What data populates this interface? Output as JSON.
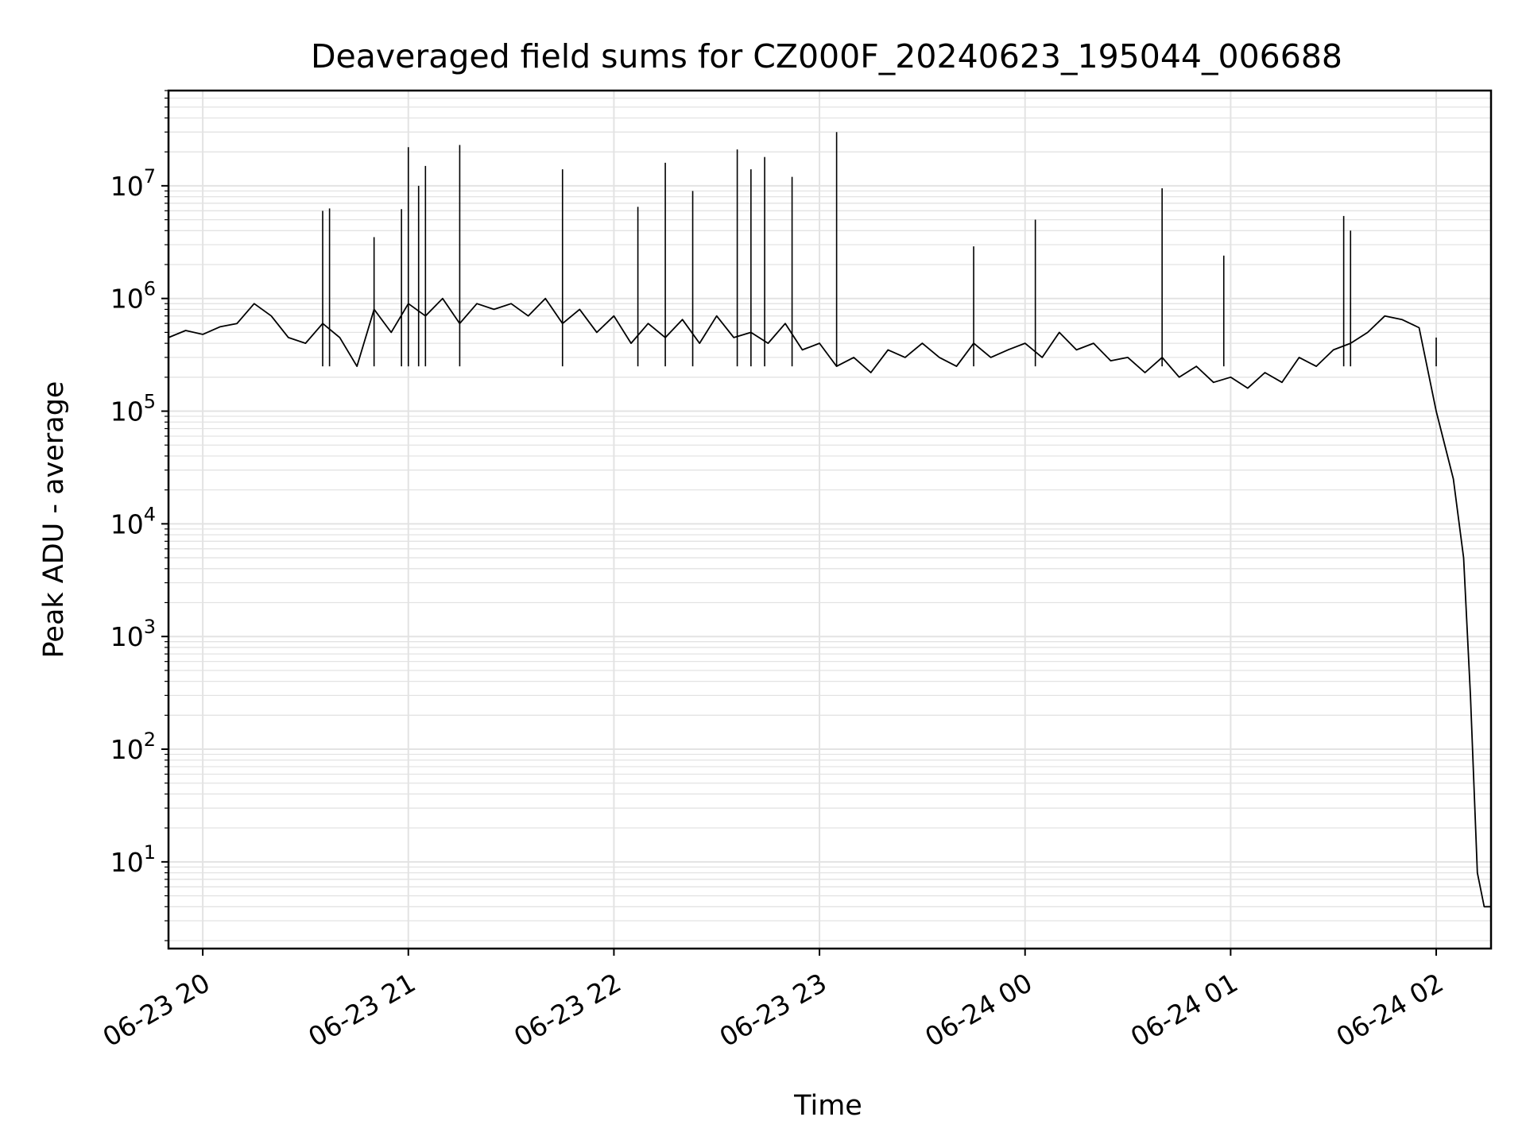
{
  "chart_data": {
    "type": "line",
    "title": "Deaveraged field sums for CZ000F_20240623_195044_006688",
    "xlabel": "Time",
    "ylabel": "Peak ADU - average",
    "yscale": "log",
    "grid": true,
    "line_color": "#000000",
    "grid_color": "#e3e3e3",
    "xlim": [
      "2024-06-23 19:50",
      "2024-06-24 02:16"
    ],
    "ylim": [
      1.7,
      70000000
    ],
    "x_ticks": [
      {
        "label": "06-23 20",
        "value": "2024-06-23 20:00"
      },
      {
        "label": "06-23 21",
        "value": "2024-06-23 21:00"
      },
      {
        "label": "06-23 22",
        "value": "2024-06-23 22:00"
      },
      {
        "label": "06-23 23",
        "value": "2024-06-23 23:00"
      },
      {
        "label": "06-24 00",
        "value": "2024-06-24 00:00"
      },
      {
        "label": "06-24 01",
        "value": "2024-06-24 01:00"
      },
      {
        "label": "06-24 02",
        "value": "2024-06-24 02:00"
      }
    ],
    "y_ticks": [
      {
        "value": 10,
        "base": "10",
        "exp": "1"
      },
      {
        "value": 100,
        "base": "10",
        "exp": "2"
      },
      {
        "value": 1000,
        "base": "10",
        "exp": "3"
      },
      {
        "value": 10000,
        "base": "10",
        "exp": "4"
      },
      {
        "value": 100000,
        "base": "10",
        "exp": "5"
      },
      {
        "value": 1000000,
        "base": "10",
        "exp": "6"
      },
      {
        "value": 10000000,
        "base": "10",
        "exp": "7"
      }
    ],
    "series": [
      {
        "x": [
          "2024-06-23 19:50",
          "2024-06-23 19:55",
          "2024-06-23 20:00",
          "2024-06-23 20:05",
          "2024-06-23 20:10",
          "2024-06-23 20:15",
          "2024-06-23 20:20",
          "2024-06-23 20:25",
          "2024-06-23 20:30",
          "2024-06-23 20:35",
          "2024-06-23 20:40",
          "2024-06-23 20:45",
          "2024-06-23 20:50",
          "2024-06-23 20:55",
          "2024-06-23 21:00",
          "2024-06-23 21:05",
          "2024-06-23 21:10",
          "2024-06-23 21:15",
          "2024-06-23 21:20",
          "2024-06-23 21:25",
          "2024-06-23 21:30",
          "2024-06-23 21:35",
          "2024-06-23 21:40",
          "2024-06-23 21:45",
          "2024-06-23 21:50",
          "2024-06-23 21:55",
          "2024-06-23 22:00",
          "2024-06-23 22:05",
          "2024-06-23 22:10",
          "2024-06-23 22:15",
          "2024-06-23 22:20",
          "2024-06-23 22:25",
          "2024-06-23 22:30",
          "2024-06-23 22:35",
          "2024-06-23 22:40",
          "2024-06-23 22:45",
          "2024-06-23 22:50",
          "2024-06-23 22:55",
          "2024-06-23 23:00",
          "2024-06-23 23:05",
          "2024-06-23 23:10",
          "2024-06-23 23:15",
          "2024-06-23 23:20",
          "2024-06-23 23:25",
          "2024-06-23 23:30",
          "2024-06-23 23:35",
          "2024-06-23 23:40",
          "2024-06-23 23:45",
          "2024-06-23 23:50",
          "2024-06-23 23:55",
          "2024-06-24 00:00",
          "2024-06-24 00:05",
          "2024-06-24 00:10",
          "2024-06-24 00:15",
          "2024-06-24 00:20",
          "2024-06-24 00:25",
          "2024-06-24 00:30",
          "2024-06-24 00:35",
          "2024-06-24 00:40",
          "2024-06-24 00:45",
          "2024-06-24 00:50",
          "2024-06-24 00:55",
          "2024-06-24 01:00",
          "2024-06-24 01:05",
          "2024-06-24 01:10",
          "2024-06-24 01:15",
          "2024-06-24 01:20",
          "2024-06-24 01:25",
          "2024-06-24 01:30",
          "2024-06-24 01:35",
          "2024-06-24 01:40",
          "2024-06-24 01:45",
          "2024-06-24 01:50",
          "2024-06-24 01:55",
          "2024-06-24 02:00",
          "2024-06-24 02:05",
          "2024-06-24 02:08",
          "2024-06-24 02:10",
          "2024-06-24 02:12",
          "2024-06-24 02:14",
          "2024-06-24 02:16"
        ],
        "y": [
          450000,
          520000,
          480000,
          560000,
          600000,
          900000,
          700000,
          450000,
          400000,
          600000,
          450000,
          250000,
          800000,
          500000,
          900000,
          700000,
          1000000,
          600000,
          900000,
          800000,
          900000,
          700000,
          1000000,
          600000,
          800000,
          500000,
          700000,
          400000,
          600000,
          450000,
          650000,
          400000,
          700000,
          450000,
          500000,
          400000,
          600000,
          350000,
          400000,
          250000,
          300000,
          220000,
          350000,
          300000,
          400000,
          300000,
          250000,
          400000,
          300000,
          350000,
          400000,
          300000,
          500000,
          350000,
          400000,
          280000,
          300000,
          220000,
          300000,
          200000,
          250000,
          180000,
          200000,
          160000,
          220000,
          180000,
          300000,
          250000,
          350000,
          400000,
          500000,
          700000,
          650000,
          550000,
          100000,
          25000,
          5000,
          300,
          8,
          4,
          4
        ]
      }
    ],
    "spikes": [
      {
        "x": "2024-06-23 20:35",
        "y": 6000000
      },
      {
        "x": "2024-06-23 20:37",
        "y": 6300000
      },
      {
        "x": "2024-06-23 20:50",
        "y": 3500000
      },
      {
        "x": "2024-06-23 20:58",
        "y": 6200000
      },
      {
        "x": "2024-06-23 21:00",
        "y": 22000000
      },
      {
        "x": "2024-06-23 21:03",
        "y": 10000000
      },
      {
        "x": "2024-06-23 21:05",
        "y": 15000000
      },
      {
        "x": "2024-06-23 21:15",
        "y": 23000000
      },
      {
        "x": "2024-06-23 21:45",
        "y": 14000000
      },
      {
        "x": "2024-06-23 22:07",
        "y": 6500000
      },
      {
        "x": "2024-06-23 22:15",
        "y": 16000000
      },
      {
        "x": "2024-06-23 22:23",
        "y": 9000000
      },
      {
        "x": "2024-06-23 22:36",
        "y": 21000000
      },
      {
        "x": "2024-06-23 22:40",
        "y": 14000000
      },
      {
        "x": "2024-06-23 22:44",
        "y": 18000000
      },
      {
        "x": "2024-06-23 22:52",
        "y": 12000000
      },
      {
        "x": "2024-06-23 23:05",
        "y": 30000000
      },
      {
        "x": "2024-06-23 23:45",
        "y": 2900000
      },
      {
        "x": "2024-06-24 00:03",
        "y": 5000000
      },
      {
        "x": "2024-06-24 00:40",
        "y": 9500000
      },
      {
        "x": "2024-06-24 00:58",
        "y": 2400000
      },
      {
        "x": "2024-06-24 01:33",
        "y": 5400000
      },
      {
        "x": "2024-06-24 01:35",
        "y": 4000000
      },
      {
        "x": "2024-06-24 02:00",
        "y": 450000
      }
    ]
  }
}
